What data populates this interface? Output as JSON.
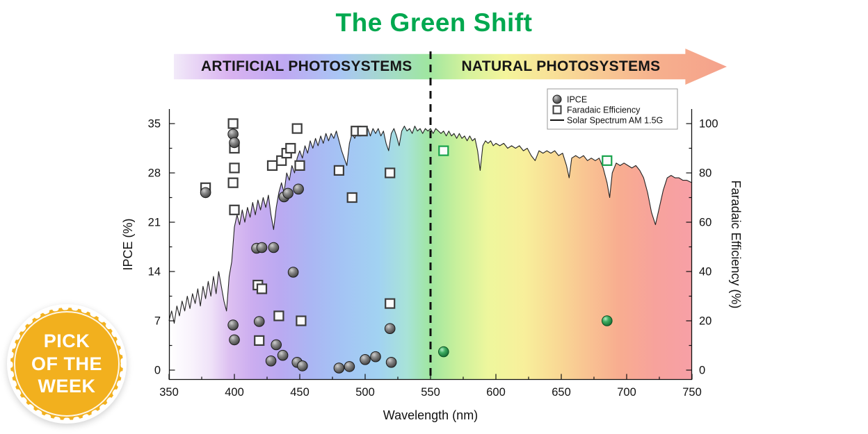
{
  "header": {
    "title": "The Green Shift",
    "title_color": "#00A84F"
  },
  "banner": {
    "left_label": "ARTIFICIAL PHOTOSYSTEMS",
    "right_label": "NATURAL PHOTOSYSTEMS"
  },
  "badge": {
    "lines": [
      "PICK",
      "OF THE",
      "WEEK"
    ],
    "color": "#F2B01E"
  },
  "chart_data": {
    "type": "scatter",
    "xlabel": "Wavelength (nm)",
    "ylabel_left": "IPCE (%)",
    "ylabel_right": "Faradaic Efficiency (%)",
    "x_range": [
      350,
      750
    ],
    "x_ticks": [
      350,
      400,
      450,
      500,
      550,
      600,
      650,
      700,
      750
    ],
    "x_minor_step": 25,
    "y_left_range": [
      0,
      35
    ],
    "y_left_ticks": [
      0,
      7,
      14,
      21,
      28,
      35
    ],
    "y_right_range": [
      0,
      100
    ],
    "y_right_ticks": [
      0,
      20,
      40,
      60,
      80,
      100
    ],
    "divider_wavelength_nm": 550,
    "legend": {
      "position": "top-right",
      "entries": [
        {
          "marker": "circle",
          "label": "IPCE"
        },
        {
          "marker": "square",
          "label": "Faradaic Efficiency"
        },
        {
          "marker": "line",
          "label": "Solar Spectrum AM 1.5G"
        }
      ]
    },
    "series": [
      {
        "name": "IPCE",
        "marker": "circle",
        "axis": "left",
        "points": [
          {
            "x": 378,
            "y": 25.2
          },
          {
            "x": 399,
            "y": 33.5
          },
          {
            "x": 400,
            "y": 32.3
          },
          {
            "x": 399,
            "y": 6.4
          },
          {
            "x": 400,
            "y": 4.3
          },
          {
            "x": 417,
            "y": 17.3
          },
          {
            "x": 421,
            "y": 17.4
          },
          {
            "x": 419,
            "y": 6.9
          },
          {
            "x": 430,
            "y": 17.4
          },
          {
            "x": 428,
            "y": 1.3
          },
          {
            "x": 432,
            "y": 3.6
          },
          {
            "x": 437,
            "y": 2.1
          },
          {
            "x": 438,
            "y": 24.6
          },
          {
            "x": 441,
            "y": 25.1
          },
          {
            "x": 445,
            "y": 13.9
          },
          {
            "x": 449,
            "y": 25.7
          },
          {
            "x": 448,
            "y": 1.1
          },
          {
            "x": 452,
            "y": 0.6
          },
          {
            "x": 480,
            "y": 0.3
          },
          {
            "x": 488,
            "y": 0.5
          },
          {
            "x": 500,
            "y": 1.5
          },
          {
            "x": 508,
            "y": 1.9
          },
          {
            "x": 519,
            "y": 5.9
          },
          {
            "x": 520,
            "y": 1.1
          },
          {
            "x": 560,
            "y": 2.6,
            "color": "green"
          },
          {
            "x": 685,
            "y": 7.0,
            "color": "green"
          }
        ]
      },
      {
        "name": "Faradaic Efficiency",
        "marker": "square",
        "axis": "right",
        "points": [
          {
            "x": 378,
            "y": 74
          },
          {
            "x": 399,
            "y": 100
          },
          {
            "x": 400,
            "y": 90
          },
          {
            "x": 400,
            "y": 82
          },
          {
            "x": 399,
            "y": 76
          },
          {
            "x": 400,
            "y": 65
          },
          {
            "x": 418,
            "y": 34.5
          },
          {
            "x": 421,
            "y": 33
          },
          {
            "x": 419,
            "y": 12
          },
          {
            "x": 429,
            "y": 83
          },
          {
            "x": 434,
            "y": 22
          },
          {
            "x": 436,
            "y": 85
          },
          {
            "x": 440,
            "y": 88
          },
          {
            "x": 443,
            "y": 90
          },
          {
            "x": 448,
            "y": 98
          },
          {
            "x": 450,
            "y": 83
          },
          {
            "x": 451,
            "y": 20
          },
          {
            "x": 480,
            "y": 81
          },
          {
            "x": 490,
            "y": 70
          },
          {
            "x": 493,
            "y": 97
          },
          {
            "x": 498,
            "y": 97
          },
          {
            "x": 519,
            "y": 80
          },
          {
            "x": 519,
            "y": 27
          },
          {
            "x": 560,
            "y": 89,
            "color": "green"
          },
          {
            "x": 685,
            "y": 85,
            "color": "green"
          }
        ]
      },
      {
        "name": "Solar Spectrum AM 1.5G",
        "type": "line",
        "axis": "right",
        "points": [
          [
            350,
            20
          ],
          [
            352,
            24
          ],
          [
            354,
            19
          ],
          [
            356,
            26
          ],
          [
            358,
            22
          ],
          [
            360,
            28
          ],
          [
            362,
            24
          ],
          [
            364,
            30
          ],
          [
            366,
            25
          ],
          [
            368,
            31
          ],
          [
            370,
            27
          ],
          [
            372,
            33
          ],
          [
            374,
            26
          ],
          [
            376,
            34
          ],
          [
            378,
            29
          ],
          [
            380,
            36
          ],
          [
            382,
            30
          ],
          [
            384,
            38
          ],
          [
            386,
            31
          ],
          [
            388,
            40
          ],
          [
            390,
            34
          ],
          [
            392,
            28
          ],
          [
            394,
            24
          ],
          [
            396,
            38
          ],
          [
            398,
            44
          ],
          [
            400,
            58
          ],
          [
            402,
            63
          ],
          [
            404,
            59
          ],
          [
            406,
            65
          ],
          [
            408,
            60
          ],
          [
            410,
            66
          ],
          [
            412,
            62
          ],
          [
            414,
            68
          ],
          [
            416,
            63
          ],
          [
            418,
            69
          ],
          [
            420,
            65
          ],
          [
            422,
            70
          ],
          [
            424,
            66
          ],
          [
            426,
            71
          ],
          [
            428,
            63
          ],
          [
            430,
            57
          ],
          [
            432,
            66
          ],
          [
            434,
            72
          ],
          [
            436,
            76
          ],
          [
            438,
            72
          ],
          [
            440,
            80
          ],
          [
            442,
            77
          ],
          [
            444,
            83
          ],
          [
            446,
            80
          ],
          [
            448,
            86
          ],
          [
            450,
            89
          ],
          [
            452,
            86
          ],
          [
            454,
            91
          ],
          [
            456,
            88
          ],
          [
            458,
            93
          ],
          [
            460,
            90
          ],
          [
            462,
            94
          ],
          [
            464,
            91
          ],
          [
            466,
            95
          ],
          [
            468,
            92
          ],
          [
            470,
            96
          ],
          [
            472,
            93
          ],
          [
            474,
            96
          ],
          [
            476,
            94
          ],
          [
            478,
            97
          ],
          [
            480,
            93
          ],
          [
            482,
            89
          ],
          [
            484,
            86
          ],
          [
            486,
            83
          ],
          [
            488,
            92
          ],
          [
            490,
            96
          ],
          [
            492,
            94
          ],
          [
            494,
            97
          ],
          [
            496,
            95
          ],
          [
            498,
            98
          ],
          [
            500,
            96
          ],
          [
            502,
            98
          ],
          [
            504,
            95
          ],
          [
            506,
            98
          ],
          [
            508,
            96
          ],
          [
            510,
            98
          ],
          [
            512,
            95
          ],
          [
            514,
            97
          ],
          [
            516,
            92
          ],
          [
            518,
            89
          ],
          [
            520,
            96
          ],
          [
            522,
            98
          ],
          [
            524,
            95
          ],
          [
            526,
            91
          ],
          [
            528,
            97
          ],
          [
            530,
            99
          ],
          [
            532,
            97
          ],
          [
            534,
            98
          ],
          [
            536,
            96
          ],
          [
            538,
            99
          ],
          [
            540,
            97
          ],
          [
            542,
            98
          ],
          [
            544,
            96
          ],
          [
            546,
            98
          ],
          [
            548,
            97
          ],
          [
            550,
            98
          ],
          [
            552,
            96
          ],
          [
            554,
            98
          ],
          [
            556,
            97
          ],
          [
            558,
            96
          ],
          [
            560,
            97
          ],
          [
            562,
            95
          ],
          [
            564,
            97
          ],
          [
            566,
            95
          ],
          [
            568,
            96
          ],
          [
            570,
            94
          ],
          [
            572,
            96
          ],
          [
            574,
            94
          ],
          [
            576,
            95
          ],
          [
            578,
            93
          ],
          [
            580,
            95
          ],
          [
            582,
            93
          ],
          [
            584,
            94
          ],
          [
            586,
            89
          ],
          [
            588,
            81
          ],
          [
            590,
            91
          ],
          [
            592,
            93
          ],
          [
            594,
            92
          ],
          [
            596,
            93
          ],
          [
            598,
            91
          ],
          [
            600,
            92
          ],
          [
            603,
            91
          ],
          [
            606,
            92
          ],
          [
            609,
            90
          ],
          [
            612,
            91
          ],
          [
            615,
            90
          ],
          [
            618,
            91
          ],
          [
            621,
            89
          ],
          [
            624,
            90
          ],
          [
            627,
            87
          ],
          [
            630,
            85
          ],
          [
            633,
            89
          ],
          [
            636,
            88
          ],
          [
            639,
            89
          ],
          [
            642,
            88
          ],
          [
            645,
            89
          ],
          [
            648,
            87
          ],
          [
            651,
            88
          ],
          [
            654,
            83
          ],
          [
            656,
            78
          ],
          [
            658,
            86
          ],
          [
            661,
            87
          ],
          [
            664,
            86
          ],
          [
            667,
            87
          ],
          [
            670,
            85
          ],
          [
            673,
            86
          ],
          [
            676,
            85
          ],
          [
            679,
            86
          ],
          [
            682,
            82
          ],
          [
            685,
            76
          ],
          [
            687,
            70
          ],
          [
            689,
            80
          ],
          [
            692,
            84
          ],
          [
            695,
            83
          ],
          [
            698,
            84
          ],
          [
            701,
            83
          ],
          [
            704,
            82
          ],
          [
            707,
            83
          ],
          [
            710,
            81
          ],
          [
            713,
            78
          ],
          [
            716,
            72
          ],
          [
            719,
            64
          ],
          [
            722,
            59
          ],
          [
            725,
            66
          ],
          [
            728,
            73
          ],
          [
            731,
            78
          ],
          [
            734,
            79
          ],
          [
            737,
            78
          ],
          [
            740,
            78
          ],
          [
            743,
            77
          ],
          [
            746,
            77
          ],
          [
            750,
            76
          ]
        ]
      }
    ],
    "background_gradient_stops": [
      [
        0.0,
        "#ffffff"
      ],
      [
        0.045,
        "#f8f2fc"
      ],
      [
        0.08,
        "#efe2f8"
      ],
      [
        0.115,
        "#ddc0f1"
      ],
      [
        0.16,
        "#cbadf0"
      ],
      [
        0.21,
        "#bba9f1"
      ],
      [
        0.27,
        "#abb6f3"
      ],
      [
        0.33,
        "#a4c4f4"
      ],
      [
        0.4,
        "#a2d2f2"
      ],
      [
        0.455,
        "#a8e3d8"
      ],
      [
        0.5,
        "#a0e69f"
      ],
      [
        0.55,
        "#c8f09c"
      ],
      [
        0.61,
        "#eef79d"
      ],
      [
        0.68,
        "#f8ef9b"
      ],
      [
        0.74,
        "#f9da95"
      ],
      [
        0.8,
        "#f9c392"
      ],
      [
        0.86,
        "#f8ad90"
      ],
      [
        0.93,
        "#f7a29c"
      ],
      [
        1.0,
        "#f7a0a6"
      ]
    ]
  }
}
